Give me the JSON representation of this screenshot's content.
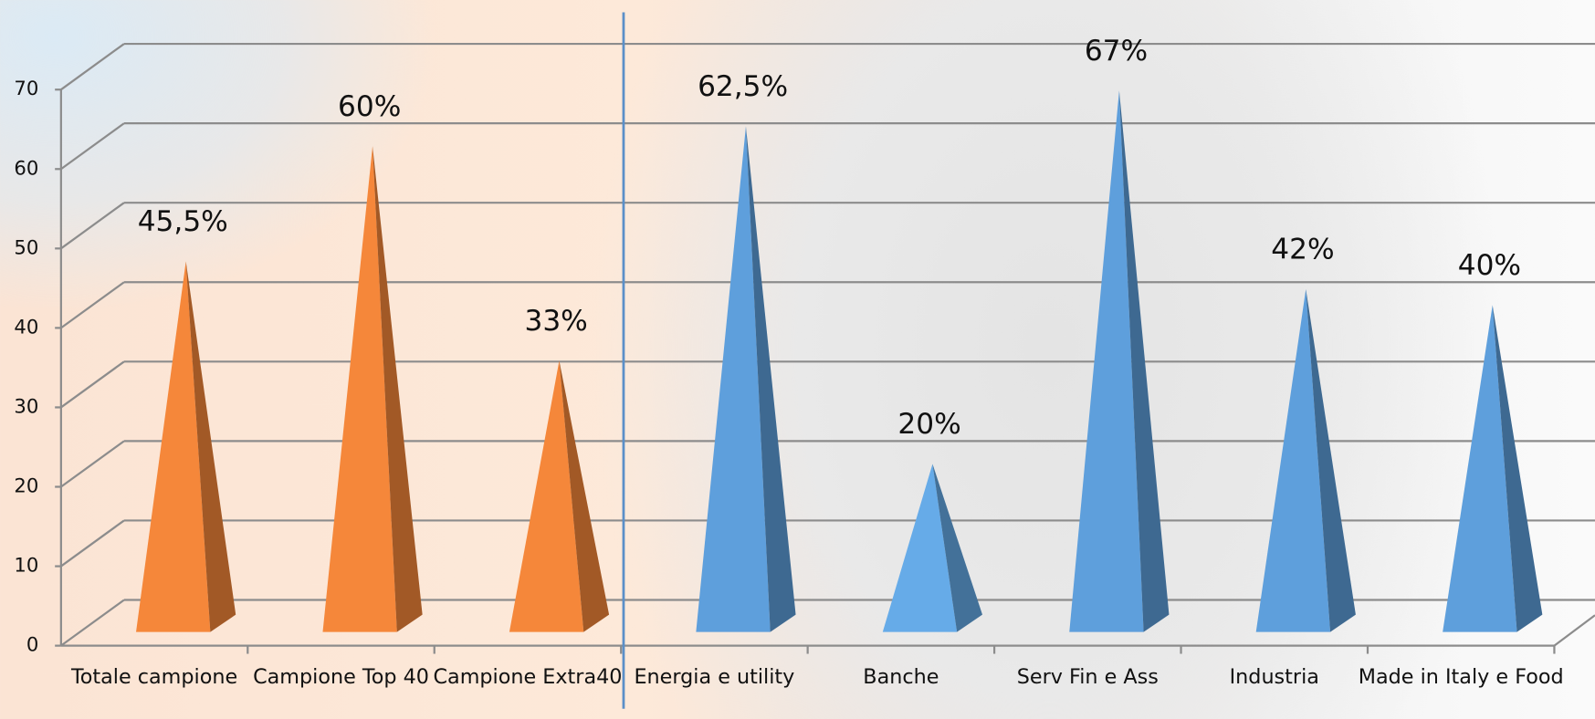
{
  "chart_data": {
    "type": "pyramid",
    "categories": [
      "Totale campione",
      "Campione Top 40",
      "Campione Extra40",
      "Energia e utility",
      "Banche",
      "Serv Fin e Ass",
      "Industria",
      "Made in Italy e Food"
    ],
    "values": [
      45.5,
      60,
      33,
      62.5,
      20,
      67,
      42,
      40
    ],
    "value_labels": [
      "45,5%",
      "60%",
      "33%",
      "62,5%",
      "20%",
      "67%",
      "42%",
      "40%"
    ],
    "colors": [
      "#f5873a",
      "#f5873a",
      "#f5873a",
      "#5e9fdc",
      "#66abe8",
      "#5e9fdc",
      "#5e9fdc",
      "#5e9fdc"
    ],
    "ylim": [
      0,
      70
    ],
    "yticks": [
      0,
      10,
      20,
      30,
      40,
      50,
      60,
      70
    ],
    "grid": true
  }
}
